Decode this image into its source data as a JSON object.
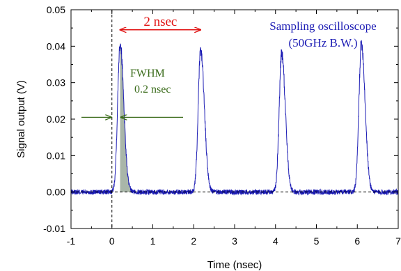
{
  "chart_data": {
    "type": "line",
    "xlabel": "Time (nsec)",
    "ylabel": "Signal output (V)",
    "xlim": [
      -1,
      7
    ],
    "ylim": [
      -0.01,
      0.05
    ],
    "x_ticks": [
      "-1",
      "0",
      "1",
      "2",
      "3",
      "4",
      "5",
      "6",
      "7"
    ],
    "y_ticks": [
      "0.05",
      "0.04",
      "0.03",
      "0.02",
      "0.01",
      "0.00",
      "-0.01"
    ],
    "grid": false,
    "baseline_y": 0,
    "marker_x": 0,
    "series": [
      {
        "color": "#1c1cb4",
        "baseline_noise": 0.0007,
        "pulses": [
          {
            "t": 0.2,
            "peak": 0.041,
            "width": 0.2
          },
          {
            "t": 2.17,
            "peak": 0.039,
            "width": 0.2
          },
          {
            "t": 4.15,
            "peak": 0.038,
            "width": 0.2
          },
          {
            "t": 6.1,
            "peak": 0.041,
            "width": 0.2
          }
        ]
      }
    ],
    "shaded_region": {
      "from": 0.2,
      "to": 0.55,
      "color": "#9aa99a"
    },
    "annotations": {
      "period_label": "2 nsec",
      "period_from": 0.2,
      "period_to": 2.17,
      "period_y": 0.0445,
      "period_color": "#e01010",
      "instrument_line1": "Sampling oscilloscope",
      "instrument_line2": "(50GHz B.W.)",
      "instrument_color": "#1c1cb4",
      "fwhm_line1": "FWHM",
      "fwhm_line2": "0.2 nsec",
      "fwhm_color": "#3a6b1a",
      "fwhm_arrow_y": 0.0205,
      "fwhm_left": 0.0,
      "fwhm_right": 0.2
    }
  }
}
